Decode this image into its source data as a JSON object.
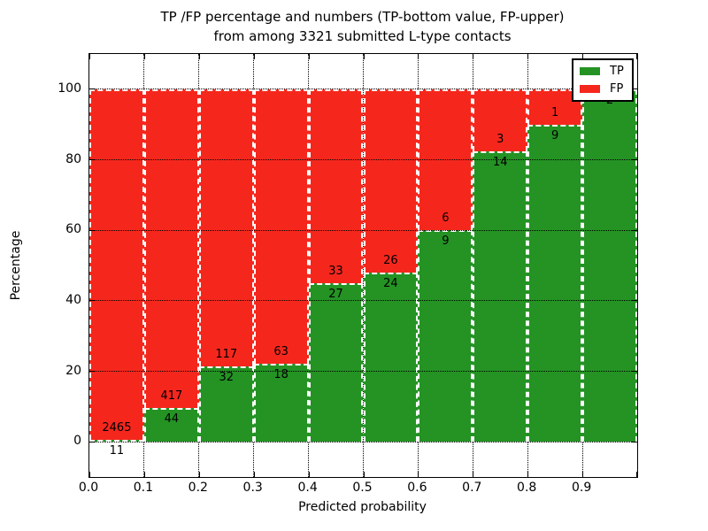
{
  "figure": {
    "title_line1": "TP /FP percentage and numbers (TP-bottom value, FP-upper)",
    "title_line2": "from among 3321 submitted L-type contacts"
  },
  "chart_data": {
    "type": "bar",
    "stacked": true,
    "orientation": "vertical",
    "total_contacts": 3321,
    "bins": [
      "0.0-0.1",
      "0.1-0.2",
      "0.2-0.3",
      "0.3-0.4",
      "0.4-0.5",
      "0.5-0.6",
      "0.6-0.7",
      "0.7-0.8",
      "0.8-0.9",
      "0.9-1.0"
    ],
    "bin_starts": [
      0.0,
      0.1,
      0.2,
      0.3,
      0.4,
      0.5,
      0.6,
      0.7,
      0.8,
      0.9
    ],
    "series": [
      {
        "name": "TP",
        "color": "#249324",
        "counts": [
          11,
          44,
          32,
          18,
          27,
          24,
          9,
          14,
          9,
          2
        ]
      },
      {
        "name": "FP",
        "color": "#f5271d",
        "counts": [
          2465,
          417,
          117,
          63,
          33,
          26,
          6,
          3,
          1,
          0
        ]
      }
    ],
    "tp_percent": [
      0.44,
      9.54,
      21.48,
      22.22,
      45.0,
      48.0,
      60.0,
      82.35,
      90.0,
      100.0
    ],
    "xlabel": "Predicted probability",
    "ylabel": "Percentage",
    "xticks": [
      "0.0",
      "0.1",
      "0.2",
      "0.3",
      "0.4",
      "0.5",
      "0.6",
      "0.7",
      "0.8",
      "0.9"
    ],
    "yticks": [
      0,
      20,
      40,
      60,
      80,
      100
    ],
    "xlim": [
      0.0,
      1.0
    ],
    "ylim": [
      -10,
      110
    ],
    "grid": "dotted",
    "bar_edge": {
      "color": "#ffffff",
      "style": "dashed"
    },
    "legend": {
      "position": "upper right",
      "entries": [
        {
          "label": "TP",
          "color": "#249324"
        },
        {
          "label": "FP",
          "color": "#f5271d"
        }
      ]
    }
  }
}
